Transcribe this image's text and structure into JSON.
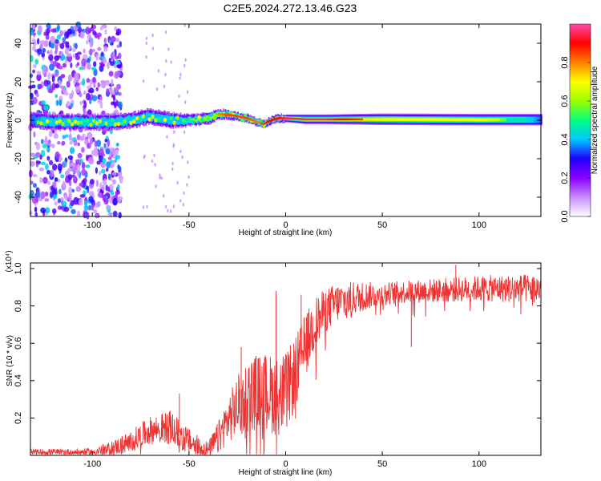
{
  "title": "C2E5.2024.272.13.46.G23",
  "chart_data": [
    {
      "type": "heatmap",
      "xlabel": "Height of straight line (km)",
      "ylabel": "Frequency (Hz)",
      "xlim": [
        -132,
        132
      ],
      "ylim": [
        -50,
        50
      ],
      "x_ticks": [
        -100,
        -50,
        0,
        50,
        100
      ],
      "y_ticks": [
        -40,
        -20,
        0,
        20,
        40
      ],
      "colorbar": {
        "label": "Normalized spectral amplitude",
        "range": [
          0,
          1
        ],
        "ticks": [
          0.0,
          0.2,
          0.4,
          0.6,
          0.8
        ],
        "tick_labels": [
          "0.0",
          "0.2",
          "0.4",
          "0.6",
          "0.8"
        ],
        "colors": [
          "#ffffff",
          "#c78cff",
          "#8a00ff",
          "#2000ff",
          "#00c8ff",
          "#00ff7f",
          "#9bff00",
          "#ffff00",
          "#ff8000",
          "#ff0000",
          "#ff4ca8"
        ]
      },
      "ridge": {
        "x": [
          -132,
          -120,
          -110,
          -100,
          -90,
          -80,
          -70,
          -60,
          -50,
          -40,
          -35,
          -30,
          -25,
          -20,
          -15,
          -12,
          -10,
          -5,
          0,
          10,
          20,
          50,
          100,
          132
        ],
        "center_hz": [
          0,
          -1,
          -1,
          -1,
          -1,
          0,
          2,
          0,
          0,
          1,
          3,
          3,
          2,
          1,
          -1,
          -2,
          -1,
          1,
          1,
          0.5,
          0.5,
          0.5,
          0.3,
          0.3
        ],
        "half_width_hz": [
          4,
          4,
          4,
          4,
          4,
          4,
          4,
          4,
          3,
          3,
          2.5,
          2.5,
          2,
          2,
          2,
          2,
          2,
          2,
          2,
          2.5,
          2.5,
          3,
          3,
          3
        ],
        "peak_amplitude": [
          0.35,
          0.45,
          0.4,
          0.42,
          0.45,
          0.4,
          0.48,
          0.42,
          0.55,
          0.7,
          0.8,
          0.85,
          0.85,
          0.85,
          0.8,
          0.85,
          0.9,
          0.9,
          0.95,
          0.95,
          0.95,
          0.8,
          0.7,
          0.35
        ]
      },
      "scatter_noise_extent_km": [
        -132,
        -85
      ]
    },
    {
      "type": "line",
      "xlabel": "Height of straight line (km)",
      "ylabel": "SNR (10 * v/v)",
      "scale_label": "(x10⁴)",
      "xlim": [
        -132,
        132
      ],
      "ylim": [
        0,
        1.03
      ],
      "x_ticks": [
        -100,
        -50,
        0,
        50,
        100
      ],
      "y_ticks": [
        0.2,
        0.4,
        0.6,
        0.8,
        1.0
      ],
      "y_tick_labels": [
        "0.2",
        "0.4",
        "0.6",
        "0.8",
        "1.0"
      ],
      "color": "#ee3333",
      "envelope": {
        "x": [
          -132,
          -100,
          -90,
          -80,
          -70,
          -60,
          -55,
          -50,
          -45,
          -40,
          -35,
          -30,
          -25,
          -20,
          -15,
          -10,
          -5,
          0,
          5,
          10,
          15,
          20,
          25,
          30,
          40,
          50,
          60,
          80,
          100,
          132
        ],
        "y": [
          0.02,
          0.02,
          0.04,
          0.08,
          0.14,
          0.16,
          0.12,
          0.08,
          0.05,
          0.03,
          0.1,
          0.2,
          0.28,
          0.34,
          0.36,
          0.36,
          0.34,
          0.35,
          0.46,
          0.6,
          0.72,
          0.78,
          0.82,
          0.84,
          0.86,
          0.87,
          0.88,
          0.89,
          0.9,
          0.9
        ]
      },
      "noise": {
        "x": [
          -132,
          -100,
          -80,
          -60,
          -40,
          -20,
          0,
          20,
          50,
          100,
          132
        ],
        "amplitude": [
          0.015,
          0.02,
          0.06,
          0.09,
          0.05,
          0.2,
          0.22,
          0.12,
          0.06,
          0.07,
          0.08
        ]
      },
      "spikes": [
        {
          "x": -55,
          "y": 0.33
        },
        {
          "x": -23,
          "y": 0.58
        },
        {
          "x": -5,
          "y": 0.88
        },
        {
          "x": 8,
          "y": 0.86
        },
        {
          "x": 65,
          "y": 0.58
        },
        {
          "x": 88,
          "y": 1.02
        }
      ]
    }
  ]
}
